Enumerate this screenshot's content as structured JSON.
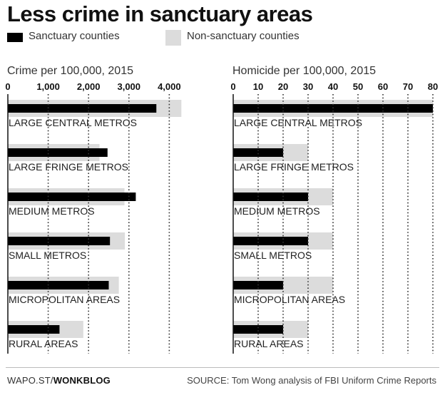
{
  "title": "Less crime in sanctuary areas",
  "legend": {
    "sanctuary": "Sanctuary counties",
    "non_sanctuary": "Non-sanctuary counties"
  },
  "colors": {
    "sanctuary": "#000000",
    "non_sanctuary": "#dcdcdc",
    "grid": "#333333"
  },
  "footer": {
    "brand_prefix": "WAPO.ST/",
    "brand_suffix": "WONKBLOG",
    "source": "SOURCE: Tom Wong analysis of FBI Uniform Crime Reports"
  },
  "chart_data": [
    {
      "type": "bar",
      "title": "Crime per 100,000, 2015",
      "categories": [
        "LARGE CENTRAL METROS",
        "LARGE FRINGE METROS",
        "MEDIUM METROS",
        "SMALL METROS",
        "MICROPOLITAN AREAS",
        "RURAL AREAS"
      ],
      "series": [
        {
          "name": "Sanctuary counties",
          "values": [
            3680,
            2470,
            3170,
            2530,
            2500,
            1280
          ]
        },
        {
          "name": "Non-sanctuary counties",
          "values": [
            4300,
            2270,
            2890,
            2900,
            2750,
            1870
          ]
        }
      ],
      "xlim": [
        0,
        4400
      ],
      "ticks": [
        0,
        1000,
        2000,
        3000,
        4000
      ],
      "tick_labels": [
        "0",
        "1,000",
        "2,000",
        "3,000",
        "4,000"
      ],
      "grid": true
    },
    {
      "type": "bar",
      "title": "Homicide per 100,000, 2015",
      "categories": [
        "LARGE CENTRAL METROS",
        "LARGE FRINGE METROS",
        "MEDIUM METROS",
        "SMALL METROS",
        "MICROPOLITAN AREAS",
        "RURAL AREAS"
      ],
      "series": [
        {
          "name": "Sanctuary counties",
          "values": [
            80,
            20,
            30,
            30,
            20,
            20
          ]
        },
        {
          "name": "Non-sanctuary counties",
          "values": [
            80,
            30,
            40,
            40,
            40,
            30
          ]
        }
      ],
      "xlim": [
        0,
        82
      ],
      "ticks": [
        0,
        10,
        20,
        30,
        40,
        50,
        60,
        70,
        80
      ],
      "tick_labels": [
        "0",
        "10",
        "20",
        "30",
        "40",
        "50",
        "60",
        "70",
        "80"
      ],
      "grid": true
    }
  ]
}
